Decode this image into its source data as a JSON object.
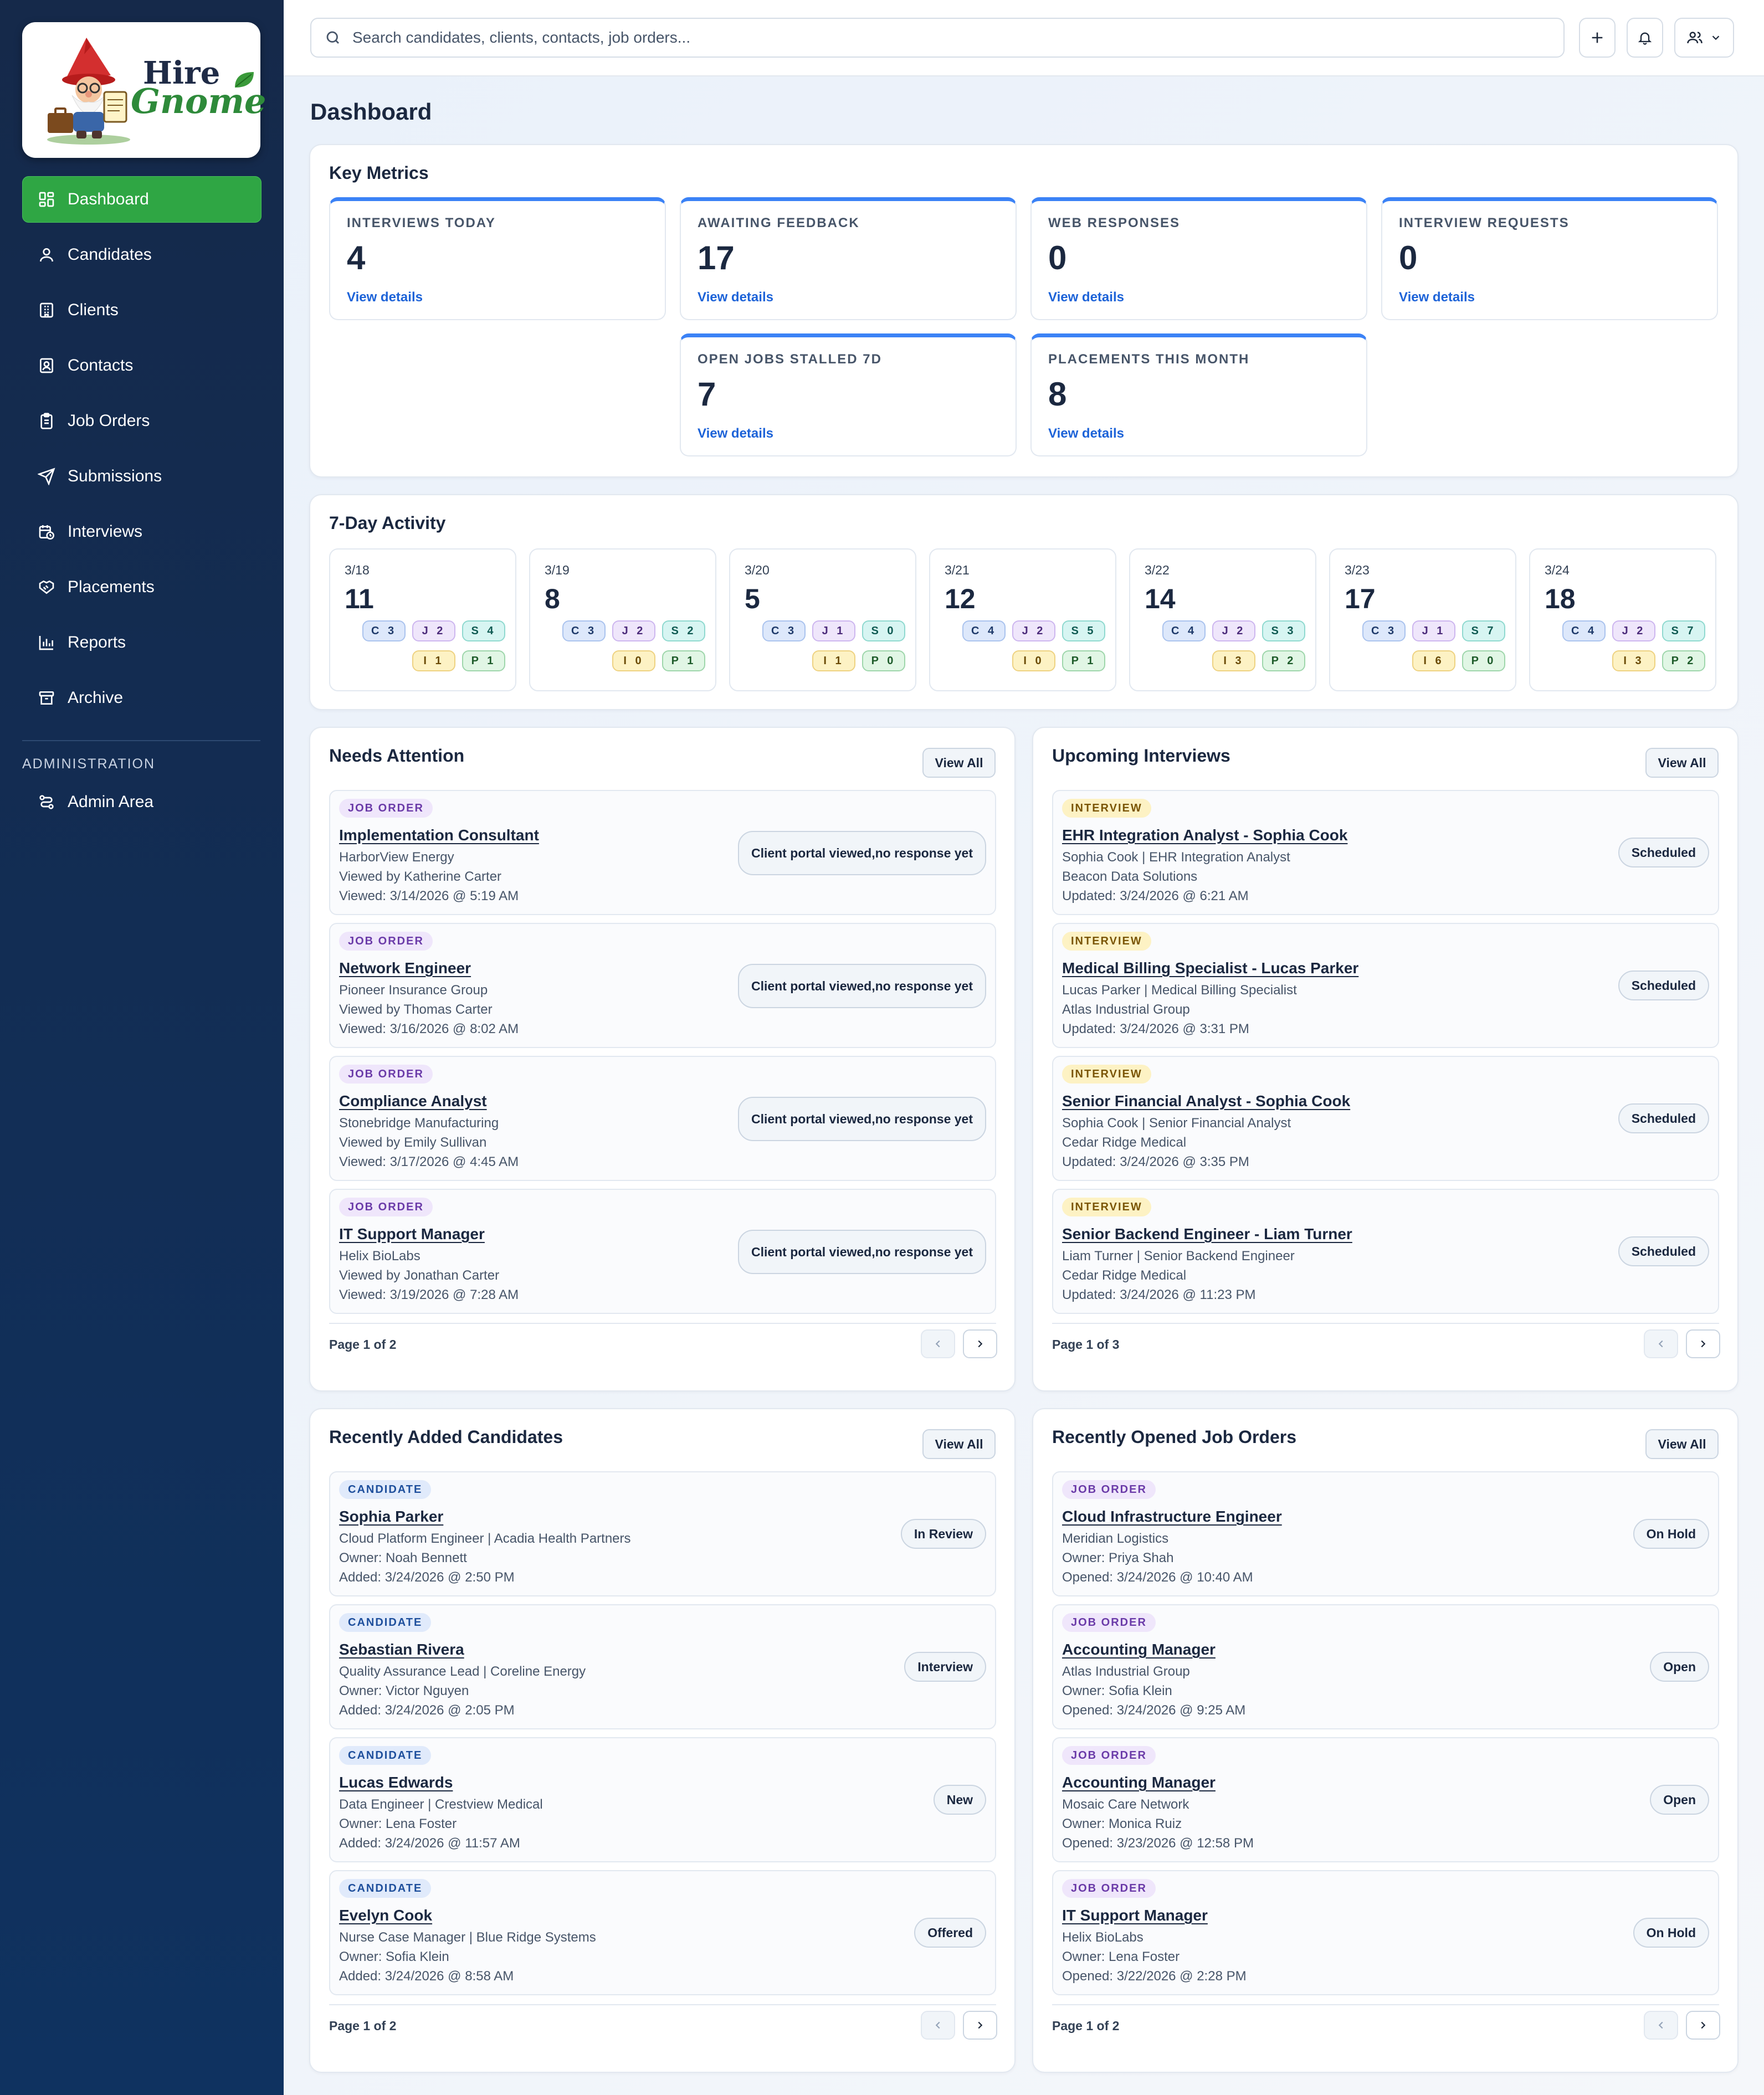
{
  "brand": {
    "line1": "Hire",
    "line2": "Gnome"
  },
  "sidebar": {
    "items": [
      {
        "label": "Dashboard",
        "icon": "grid-icon",
        "active": true
      },
      {
        "label": "Candidates",
        "icon": "user-icon"
      },
      {
        "label": "Clients",
        "icon": "building-icon"
      },
      {
        "label": "Contacts",
        "icon": "contact-card-icon"
      },
      {
        "label": "Job Orders",
        "icon": "clipboard-icon"
      },
      {
        "label": "Submissions",
        "icon": "send-icon"
      },
      {
        "label": "Interviews",
        "icon": "calendar-clock-icon"
      },
      {
        "label": "Placements",
        "icon": "handshake-icon"
      },
      {
        "label": "Reports",
        "icon": "bar-chart-icon"
      },
      {
        "label": "Archive",
        "icon": "archive-icon"
      }
    ],
    "section_label": "ADMINISTRATION",
    "admin_item": {
      "label": "Admin Area",
      "icon": "route-icon"
    }
  },
  "topbar": {
    "search_placeholder": "Search candidates, clients, contacts, job orders...",
    "icons": [
      "plus-icon",
      "bell-icon",
      "users-icon",
      "chevron-down-icon"
    ]
  },
  "page": {
    "title": "Dashboard"
  },
  "key_metrics": {
    "title": "Key Metrics",
    "link_label": "View details",
    "accent": "#3b82f6",
    "items": [
      {
        "label": "INTERVIEWS TODAY",
        "value": "4"
      },
      {
        "label": "AWAITING FEEDBACK",
        "value": "17"
      },
      {
        "label": "WEB RESPONSES",
        "value": "0"
      },
      {
        "label": "INTERVIEW REQUESTS",
        "value": "0"
      },
      {
        "label": "OPEN JOBS STALLED 7D",
        "value": "7"
      },
      {
        "label": "PLACEMENTS THIS MONTH",
        "value": "8"
      }
    ]
  },
  "activity": {
    "title": "7-Day Activity",
    "days": [
      {
        "date": "3/18",
        "total": "11",
        "pills": [
          "C 3",
          "J 2",
          "S 4",
          "I 1",
          "P 1"
        ]
      },
      {
        "date": "3/19",
        "total": "8",
        "pills": [
          "C 3",
          "J 2",
          "S 2",
          "I 0",
          "P 1"
        ]
      },
      {
        "date": "3/20",
        "total": "5",
        "pills": [
          "C 3",
          "J 1",
          "S 0",
          "I 1",
          "P 0"
        ]
      },
      {
        "date": "3/21",
        "total": "12",
        "pills": [
          "C 4",
          "J 2",
          "S 5",
          "I 0",
          "P 1"
        ]
      },
      {
        "date": "3/22",
        "total": "14",
        "pills": [
          "C 4",
          "J 2",
          "S 3",
          "I 3",
          "P 2"
        ]
      },
      {
        "date": "3/23",
        "total": "17",
        "pills": [
          "C 3",
          "J 1",
          "S 7",
          "I 6",
          "P 0"
        ]
      },
      {
        "date": "3/24",
        "total": "18",
        "pills": [
          "C 4",
          "J 2",
          "S 7",
          "I 3",
          "P 2"
        ]
      }
    ]
  },
  "panels": [
    {
      "title": "Needs Attention",
      "view_all": "View All",
      "pager": "Page 1 of 2",
      "items": [
        {
          "badge": "JOB ORDER",
          "kind": "job",
          "title": "Implementation Consultant",
          "lines": [
            "HarborView Energy",
            "Viewed by Katherine Carter",
            "Viewed: 3/14/2026 @ 5:19 AM"
          ],
          "status": [
            "Client portal viewed,",
            "no response yet"
          ]
        },
        {
          "badge": "JOB ORDER",
          "kind": "job",
          "title": "Network Engineer",
          "lines": [
            "Pioneer Insurance Group",
            "Viewed by Thomas Carter",
            "Viewed: 3/16/2026 @ 8:02 AM"
          ],
          "status": [
            "Client portal viewed,",
            "no response yet"
          ]
        },
        {
          "badge": "JOB ORDER",
          "kind": "job",
          "title": "Compliance Analyst",
          "lines": [
            "Stonebridge Manufacturing",
            "Viewed by Emily Sullivan",
            "Viewed: 3/17/2026 @ 4:45 AM"
          ],
          "status": [
            "Client portal viewed,",
            "no response yet"
          ]
        },
        {
          "badge": "JOB ORDER",
          "kind": "job",
          "title": "IT Support Manager",
          "lines": [
            "Helix BioLabs",
            "Viewed by Jonathan Carter",
            "Viewed: 3/19/2026 @ 7:28 AM"
          ],
          "status": [
            "Client portal viewed,",
            "no response yet"
          ]
        }
      ]
    },
    {
      "title": "Upcoming Interviews",
      "view_all": "View All",
      "pager": "Page 1 of 3",
      "items": [
        {
          "badge": "INTERVIEW",
          "kind": "intv",
          "title": "EHR Integration Analyst - Sophia Cook",
          "lines": [
            "Sophia Cook | EHR Integration Analyst",
            "Beacon Data Solutions",
            "Updated: 3/24/2026 @ 6:21 AM"
          ],
          "status": [
            "Scheduled"
          ]
        },
        {
          "badge": "INTERVIEW",
          "kind": "intv",
          "title": "Medical Billing Specialist - Lucas Parker",
          "lines": [
            "Lucas Parker | Medical Billing Specialist",
            "Atlas Industrial Group",
            "Updated: 3/24/2026 @ 3:31 PM"
          ],
          "status": [
            "Scheduled"
          ]
        },
        {
          "badge": "INTERVIEW",
          "kind": "intv",
          "title": "Senior Financial Analyst - Sophia Cook",
          "lines": [
            "Sophia Cook | Senior Financial Analyst",
            "Cedar Ridge Medical",
            "Updated: 3/24/2026 @ 3:35 PM"
          ],
          "status": [
            "Scheduled"
          ]
        },
        {
          "badge": "INTERVIEW",
          "kind": "intv",
          "title": "Senior Backend Engineer - Liam Turner",
          "lines": [
            "Liam Turner | Senior Backend Engineer",
            "Cedar Ridge Medical",
            "Updated: 3/24/2026 @ 11:23 PM"
          ],
          "status": [
            "Scheduled"
          ]
        }
      ]
    },
    {
      "title": "Recently Added Candidates",
      "view_all": "View All",
      "pager": "Page 1 of 2",
      "items": [
        {
          "badge": "CANDIDATE",
          "kind": "cand",
          "title": "Sophia Parker",
          "lines": [
            "Cloud Platform Engineer | Acadia Health Partners",
            "Owner: Noah Bennett",
            "Added: 3/24/2026 @ 2:50 PM"
          ],
          "status": [
            "In Review"
          ]
        },
        {
          "badge": "CANDIDATE",
          "kind": "cand",
          "title": "Sebastian Rivera",
          "lines": [
            "Quality Assurance Lead | Coreline Energy",
            "Owner: Victor Nguyen",
            "Added: 3/24/2026 @ 2:05 PM"
          ],
          "status": [
            "Interview"
          ]
        },
        {
          "badge": "CANDIDATE",
          "kind": "cand",
          "title": "Lucas Edwards",
          "lines": [
            "Data Engineer | Crestview Medical",
            "Owner: Lena Foster",
            "Added: 3/24/2026 @ 11:57 AM"
          ],
          "status": [
            "New"
          ]
        },
        {
          "badge": "CANDIDATE",
          "kind": "cand",
          "title": "Evelyn Cook",
          "lines": [
            "Nurse Case Manager | Blue Ridge Systems",
            "Owner: Sofia Klein",
            "Added: 3/24/2026 @ 8:58 AM"
          ],
          "status": [
            "Offered"
          ]
        }
      ]
    },
    {
      "title": "Recently Opened Job Orders",
      "view_all": "View All",
      "pager": "Page 1 of 2",
      "items": [
        {
          "badge": "JOB ORDER",
          "kind": "job",
          "title": "Cloud Infrastructure Engineer",
          "lines": [
            "Meridian Logistics",
            "Owner: Priya Shah",
            "Opened: 3/24/2026 @ 10:40 AM"
          ],
          "status": [
            "On Hold"
          ]
        },
        {
          "badge": "JOB ORDER",
          "kind": "job",
          "title": "Accounting Manager",
          "lines": [
            "Atlas Industrial Group",
            "Owner: Sofia Klein",
            "Opened: 3/24/2026 @ 9:25 AM"
          ],
          "status": [
            "Open"
          ]
        },
        {
          "badge": "JOB ORDER",
          "kind": "job",
          "title": "Accounting Manager",
          "lines": [
            "Mosaic Care Network",
            "Owner: Monica Ruiz",
            "Opened: 3/23/2026 @ 12:58 PM"
          ],
          "status": [
            "Open"
          ]
        },
        {
          "badge": "JOB ORDER",
          "kind": "job",
          "title": "IT Support Manager",
          "lines": [
            "Helix BioLabs",
            "Owner: Lena Foster",
            "Opened: 3/22/2026 @ 2:28 PM"
          ],
          "status": [
            "On Hold"
          ]
        }
      ]
    }
  ]
}
